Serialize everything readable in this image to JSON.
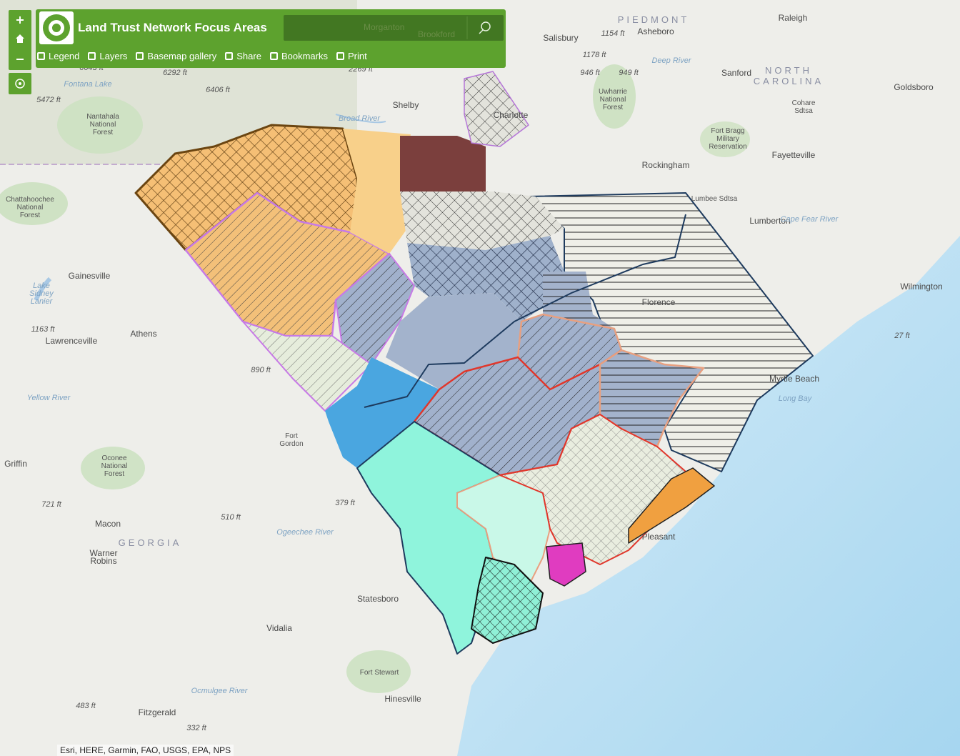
{
  "header": {
    "title": "Land Trust Network Focus Areas",
    "search_hints": [
      "Morganton",
      "Brookford"
    ],
    "toolbar": [
      "Legend",
      "Layers",
      "Basemap gallery",
      "Share",
      "Bookmarks",
      "Print"
    ]
  },
  "map_labels": [
    "Raleigh",
    "PIEDMONT",
    "Salisbury",
    "Asheboro",
    "1154 ft",
    "1178 ft",
    "946 ft",
    "949 ft",
    "Sanford",
    "NORTH",
    "CAROLINA",
    "Goldsboro",
    [
      "Uwharrie",
      "National",
      "Forest"
    ],
    "Shelby",
    "Charlotte",
    [
      "Fort Bragg",
      "Military",
      "Reservation"
    ],
    "Fayetteville",
    "Rockingham",
    "Lumbee Sdtsa",
    "Lumberton",
    [
      "Cohare",
      "Sdtsa"
    ],
    "Gainesville",
    "Wilmington",
    "Florence",
    "Athens",
    "Lawrenceville",
    "Myrtle Beach",
    "Long Bay",
    [
      "Fort",
      "Gordon"
    ],
    "Griffin",
    [
      "Oconee",
      "National",
      "Forest"
    ],
    "Macon",
    "GEORGIA",
    [
      "Warner",
      "Robins"
    ],
    "Statesboro",
    "Vidalia",
    "Fort Stewart",
    "Hinesville",
    "Fitzgerald",
    [
      "Chattahoochee",
      "National",
      "Forest"
    ],
    [
      "Nantahala",
      "National",
      "Forest"
    ],
    [
      "Lake",
      "Sidney",
      "Lanier"
    ],
    "6292 ft",
    "6406 ft",
    "5472 ft",
    "6643 ft",
    "2269 ft",
    "1163 ft",
    "890 ft",
    "721 ft",
    "510 ft",
    "379 ft",
    "483 ft",
    "332 ft",
    "27 ft",
    "Broad River",
    "Ogeechee River",
    "Yellow River",
    "Ocmulgee River",
    "Cape Fear River",
    "Deep River",
    "Fontana Lake",
    "Pleasant"
  ],
  "attribution": "Esri, HERE, Garmin, FAO, USGS, EPA, NPS"
}
